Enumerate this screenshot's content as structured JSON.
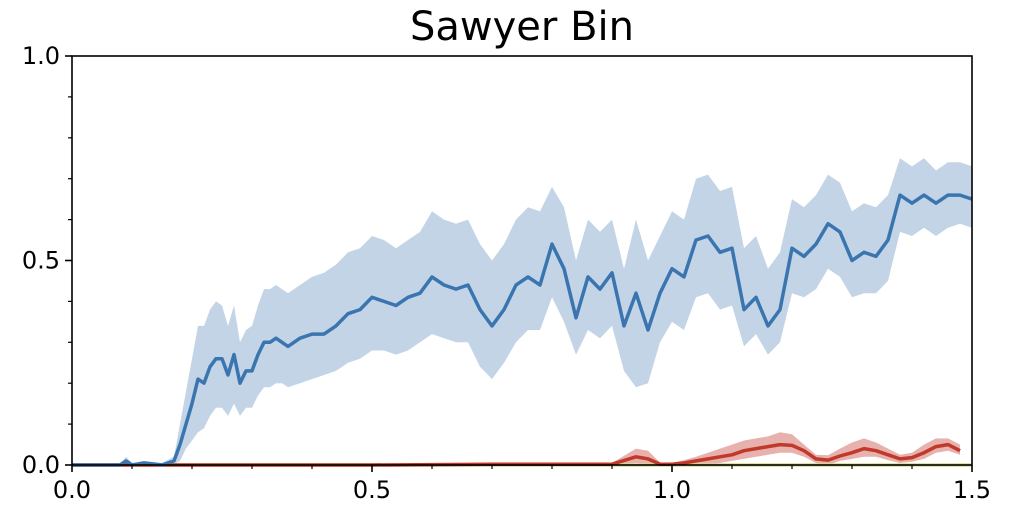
{
  "chart_data": {
    "type": "line",
    "title": "Sawyer Bin",
    "xlabel": "",
    "ylabel": "",
    "xlim": [
      0.0,
      1.5
    ],
    "ylim": [
      0.0,
      1.0
    ],
    "x_scale_note": "1e7",
    "x_ticks": [
      "0.0",
      "0.5",
      "1.0",
      "1.5"
    ],
    "y_ticks": [
      "0.0",
      "0.5",
      "1.0"
    ],
    "grid": false,
    "legend": "none",
    "series": [
      {
        "color": "#3a75b0",
        "band_color": "#c3d4e7",
        "x": [
          0.0,
          0.08,
          0.09,
          0.1,
          0.12,
          0.15,
          0.17,
          0.18,
          0.19,
          0.2,
          0.21,
          0.22,
          0.23,
          0.24,
          0.25,
          0.26,
          0.27,
          0.28,
          0.29,
          0.3,
          0.31,
          0.32,
          0.33,
          0.34,
          0.35,
          0.36,
          0.38,
          0.4,
          0.42,
          0.44,
          0.46,
          0.48,
          0.5,
          0.52,
          0.54,
          0.56,
          0.58,
          0.6,
          0.62,
          0.64,
          0.66,
          0.68,
          0.7,
          0.72,
          0.74,
          0.76,
          0.78,
          0.8,
          0.82,
          0.84,
          0.86,
          0.88,
          0.9,
          0.92,
          0.94,
          0.96,
          0.98,
          1.0,
          1.02,
          1.04,
          1.06,
          1.08,
          1.1,
          1.12,
          1.14,
          1.16,
          1.18,
          1.2,
          1.22,
          1.24,
          1.26,
          1.28,
          1.3,
          1.32,
          1.34,
          1.36,
          1.38,
          1.4,
          1.42,
          1.44,
          1.46,
          1.48,
          1.5
        ],
        "mean": [
          0.0,
          0.0,
          0.01,
          0.0,
          0.005,
          0.0,
          0.01,
          0.05,
          0.1,
          0.15,
          0.21,
          0.2,
          0.24,
          0.26,
          0.26,
          0.22,
          0.27,
          0.2,
          0.23,
          0.23,
          0.27,
          0.3,
          0.3,
          0.31,
          0.3,
          0.29,
          0.31,
          0.32,
          0.32,
          0.34,
          0.37,
          0.38,
          0.41,
          0.4,
          0.39,
          0.41,
          0.42,
          0.46,
          0.44,
          0.43,
          0.44,
          0.38,
          0.34,
          0.38,
          0.44,
          0.46,
          0.44,
          0.54,
          0.48,
          0.36,
          0.46,
          0.43,
          0.47,
          0.34,
          0.42,
          0.33,
          0.42,
          0.48,
          0.46,
          0.55,
          0.56,
          0.52,
          0.53,
          0.38,
          0.41,
          0.34,
          0.38,
          0.53,
          0.51,
          0.54,
          0.59,
          0.57,
          0.5,
          0.52,
          0.51,
          0.55,
          0.66,
          0.64,
          0.66,
          0.64,
          0.66,
          0.66,
          0.65
        ],
        "lower": [
          0.0,
          0.0,
          0.0,
          0.0,
          0.0,
          0.0,
          0.0,
          0.01,
          0.04,
          0.06,
          0.08,
          0.09,
          0.12,
          0.14,
          0.14,
          0.12,
          0.15,
          0.12,
          0.14,
          0.14,
          0.17,
          0.19,
          0.19,
          0.2,
          0.2,
          0.19,
          0.2,
          0.21,
          0.22,
          0.23,
          0.25,
          0.26,
          0.28,
          0.28,
          0.27,
          0.28,
          0.3,
          0.32,
          0.31,
          0.3,
          0.3,
          0.24,
          0.21,
          0.25,
          0.3,
          0.33,
          0.33,
          0.41,
          0.35,
          0.27,
          0.33,
          0.31,
          0.34,
          0.23,
          0.19,
          0.2,
          0.3,
          0.35,
          0.33,
          0.41,
          0.42,
          0.38,
          0.39,
          0.29,
          0.32,
          0.27,
          0.3,
          0.42,
          0.41,
          0.43,
          0.48,
          0.46,
          0.41,
          0.42,
          0.42,
          0.45,
          0.57,
          0.56,
          0.58,
          0.56,
          0.58,
          0.59,
          0.58
        ],
        "upper": [
          0.0,
          0.0,
          0.02,
          0.005,
          0.01,
          0.005,
          0.02,
          0.1,
          0.18,
          0.26,
          0.34,
          0.34,
          0.38,
          0.4,
          0.39,
          0.34,
          0.39,
          0.3,
          0.33,
          0.34,
          0.39,
          0.43,
          0.43,
          0.44,
          0.43,
          0.42,
          0.44,
          0.46,
          0.47,
          0.49,
          0.52,
          0.53,
          0.56,
          0.55,
          0.53,
          0.55,
          0.57,
          0.62,
          0.6,
          0.59,
          0.6,
          0.54,
          0.5,
          0.54,
          0.6,
          0.63,
          0.62,
          0.68,
          0.63,
          0.5,
          0.6,
          0.57,
          0.6,
          0.48,
          0.6,
          0.5,
          0.56,
          0.62,
          0.6,
          0.7,
          0.71,
          0.67,
          0.68,
          0.53,
          0.56,
          0.48,
          0.52,
          0.65,
          0.63,
          0.66,
          0.71,
          0.69,
          0.62,
          0.64,
          0.63,
          0.66,
          0.75,
          0.73,
          0.75,
          0.72,
          0.74,
          0.74,
          0.73
        ]
      },
      {
        "color": "#c0392b",
        "band_color": "#e7b1ae",
        "x": [
          0.0,
          0.5,
          0.7,
          0.8,
          0.9,
          0.94,
          0.96,
          0.98,
          1.0,
          1.02,
          1.04,
          1.06,
          1.08,
          1.1,
          1.12,
          1.14,
          1.16,
          1.18,
          1.2,
          1.22,
          1.24,
          1.26,
          1.28,
          1.3,
          1.32,
          1.34,
          1.36,
          1.38,
          1.4,
          1.42,
          1.44,
          1.46,
          1.48
        ],
        "mean": [
          0.0,
          0.0,
          0.002,
          0.002,
          0.002,
          0.02,
          0.015,
          0.002,
          0.002,
          0.005,
          0.01,
          0.015,
          0.02,
          0.025,
          0.035,
          0.04,
          0.045,
          0.05,
          0.048,
          0.035,
          0.015,
          0.012,
          0.022,
          0.03,
          0.04,
          0.035,
          0.025,
          0.015,
          0.018,
          0.03,
          0.045,
          0.05,
          0.035
        ],
        "lower": [
          0.0,
          0.0,
          0.0,
          0.0,
          0.0,
          0.005,
          0.0,
          0.0,
          0.0,
          0.0,
          0.0,
          0.0,
          0.005,
          0.01,
          0.015,
          0.02,
          0.025,
          0.03,
          0.03,
          0.02,
          0.005,
          0.0,
          0.01,
          0.015,
          0.02,
          0.02,
          0.012,
          0.005,
          0.008,
          0.015,
          0.03,
          0.035,
          0.025
        ],
        "upper": [
          0.0,
          0.002,
          0.005,
          0.006,
          0.005,
          0.04,
          0.035,
          0.006,
          0.005,
          0.012,
          0.02,
          0.03,
          0.04,
          0.05,
          0.06,
          0.065,
          0.07,
          0.08,
          0.075,
          0.05,
          0.025,
          0.024,
          0.04,
          0.055,
          0.065,
          0.055,
          0.04,
          0.025,
          0.03,
          0.05,
          0.065,
          0.065,
          0.05
        ]
      },
      {
        "color": "#d9d98a",
        "band_color": "#f0f0c0",
        "x": [
          0.0,
          1.5
        ],
        "mean": [
          0.0,
          0.0
        ],
        "lower": [
          0.0,
          0.0
        ],
        "upper": [
          0.0,
          0.0
        ]
      }
    ]
  }
}
